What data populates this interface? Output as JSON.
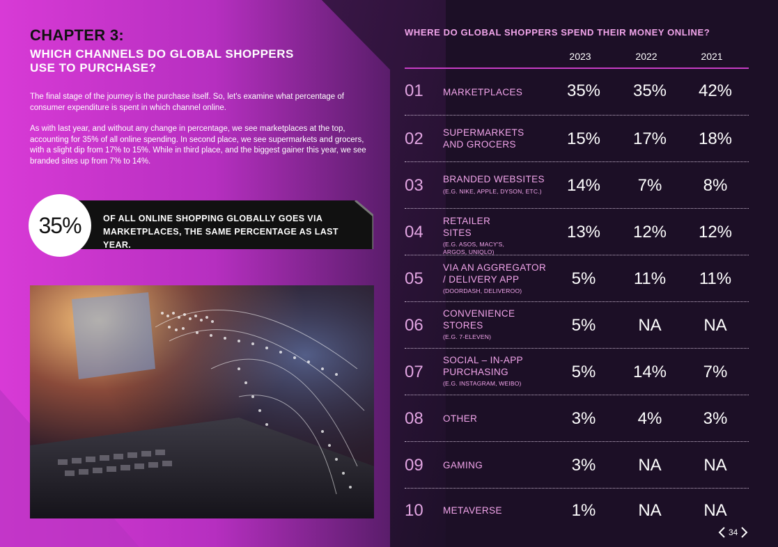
{
  "chapter": {
    "heading": "CHAPTER 3:",
    "subtitle": "WHICH CHANNELS DO GLOBAL SHOPPERS USE TO PURCHASE?"
  },
  "intro": {
    "paragraph_1": "The final stage of the journey is the purchase itself. So, let's examine what percentage of consumer expenditure is spent in which channel online.",
    "paragraph_2": "As with last year, and without any change in percentage, we see marketplaces at the top, accounting for 35% of all online spending. In second place, we see supermarkets and grocers, with a slight dip from 17% to 15%. While in third place, and the biggest gainer this year, we see branded sites up from 7% to 14%."
  },
  "callout": {
    "stat": "35%",
    "text": "OF ALL ONLINE SHOPPING GLOBALLY GOES VIA MARKETPLACES, THE SAME PERCENTAGE AS LAST YEAR."
  },
  "table": {
    "title": "WHERE DO GLOBAL SHOPPERS SPEND THEIR MONEY ONLINE?",
    "years": [
      "2023",
      "2022",
      "2021"
    ],
    "rows": [
      {
        "num": "01",
        "label": "MARKETPLACES",
        "sub": "",
        "v2023": "35%",
        "v2022": "35%",
        "v2021": "42%"
      },
      {
        "num": "02",
        "label": "SUPERMARKETS AND GROCERS",
        "sub": "",
        "v2023": "15%",
        "v2022": "17%",
        "v2021": "18%"
      },
      {
        "num": "03",
        "label": "BRANDED WEBSITES",
        "sub": "(E.G. NIKE, APPLE, DYSON, ETC.)",
        "v2023": "14%",
        "v2022": "7%",
        "v2021": "8%"
      },
      {
        "num": "04",
        "label": "RETAILER SITES",
        "sub": "(E.G. ASOS, MACY'S, ARGOS, UNIQLO)",
        "v2023": "13%",
        "v2022": "12%",
        "v2021": "12%"
      },
      {
        "num": "05",
        "label": "VIA AN AGGREGATOR / DELIVERY APP",
        "sub": "(DOORDASH, DELIVEROO)",
        "v2023": "5%",
        "v2022": "11%",
        "v2021": "11%"
      },
      {
        "num": "06",
        "label": "CONVENIENCE STORES",
        "sub": "(E.G. 7-ELEVEN)",
        "v2023": "5%",
        "v2022": "NA",
        "v2021": "NA"
      },
      {
        "num": "07",
        "label": "SOCIAL – IN-APP PURCHASING",
        "sub": "(E.G. INSTAGRAM, WEIBO)",
        "v2023": "5%",
        "v2022": "14%",
        "v2021": "7%"
      },
      {
        "num": "08",
        "label": "OTHER",
        "sub": "",
        "v2023": "3%",
        "v2022": "4%",
        "v2021": "3%"
      },
      {
        "num": "09",
        "label": "GAMING",
        "sub": "",
        "v2023": "3%",
        "v2022": "NA",
        "v2021": "NA"
      },
      {
        "num": "10",
        "label": "METAVERSE",
        "sub": "",
        "v2023": "1%",
        "v2022": "NA",
        "v2021": "NA"
      }
    ]
  },
  "pager": {
    "page_number": "34"
  },
  "colors": {
    "magenta": "#d23fd0",
    "pink_text": "#f3a6ec",
    "dark_bg": "#1c0f26",
    "accent_line": "#c83ec6"
  }
}
